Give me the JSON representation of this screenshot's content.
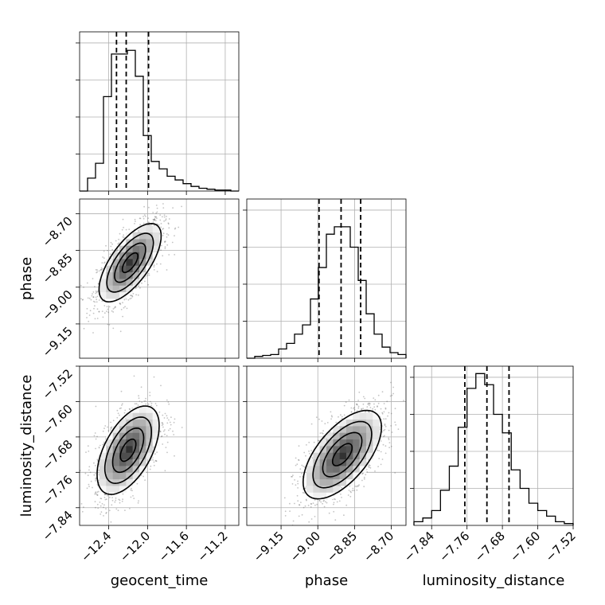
{
  "chart_data": {
    "type": "corner",
    "parameters": [
      {
        "name": "geocent_time",
        "label": "geocent_time",
        "range": [
          -12.7,
          -11.06
        ],
        "ticks": [
          -12.4,
          -12.0,
          -11.6,
          -11.2
        ],
        "tick_labels": [
          "−12.4",
          "−12.0",
          "−11.6",
          "−11.2"
        ],
        "quantiles": [
          -12.32,
          -12.22,
          -11.99
        ],
        "histogram": [
          0.0,
          0.07,
          0.15,
          0.51,
          0.74,
          0.74,
          0.76,
          0.62,
          0.3,
          0.16,
          0.12,
          0.08,
          0.06,
          0.04,
          0.025,
          0.015,
          0.01,
          0.005,
          0.005,
          0.0
        ]
      },
      {
        "name": "phase",
        "label": "phase",
        "range": [
          -9.29,
          -8.64
        ],
        "ticks": [
          -9.15,
          -9.0,
          -8.85,
          -8.7
        ],
        "tick_labels": [
          "−9.15",
          "−9.00",
          "−8.85",
          "−8.70"
        ],
        "quantiles": [
          -8.995,
          -8.905,
          -8.825
        ],
        "histogram": [
          0.0,
          0.01,
          0.015,
          0.02,
          0.05,
          0.08,
          0.13,
          0.18,
          0.32,
          0.49,
          0.67,
          0.71,
          0.71,
          0.6,
          0.42,
          0.24,
          0.13,
          0.06,
          0.03,
          0.02
        ]
      },
      {
        "name": "luminosity_distance",
        "label": "luminosity_distance",
        "range": [
          -7.88,
          -7.52
        ],
        "ticks": [
          -7.84,
          -7.76,
          -7.68,
          -7.6,
          -7.52
        ],
        "tick_labels": [
          "−7.84",
          "−7.76",
          "−7.68",
          "−7.60",
          "−7.52"
        ],
        "quantiles": [
          -7.765,
          -7.715,
          -7.665
        ],
        "histogram": [
          0.02,
          0.04,
          0.08,
          0.19,
          0.32,
          0.53,
          0.74,
          0.82,
          0.76,
          0.6,
          0.5,
          0.3,
          0.2,
          0.12,
          0.08,
          0.05,
          0.02,
          0.01
        ]
      }
    ],
    "samples_2d": [
      {
        "x": "geocent_time",
        "y": "phase",
        "mean": [
          -12.18,
          -8.9
        ],
        "std": [
          0.16,
          0.08
        ],
        "corr": 0.68
      },
      {
        "x": "geocent_time",
        "y": "luminosity_distance",
        "mean": [
          -12.2,
          -7.71
        ],
        "std": [
          0.16,
          0.05
        ],
        "corr": 0.55
      },
      {
        "x": "phase",
        "y": "luminosity_distance",
        "mean": [
          -8.9,
          -7.72
        ],
        "std": [
          0.08,
          0.05
        ],
        "corr": 0.62
      }
    ],
    "contour_levels_sigma": [
      0.5,
      1.0,
      1.5,
      2.0
    ],
    "grid": true
  }
}
